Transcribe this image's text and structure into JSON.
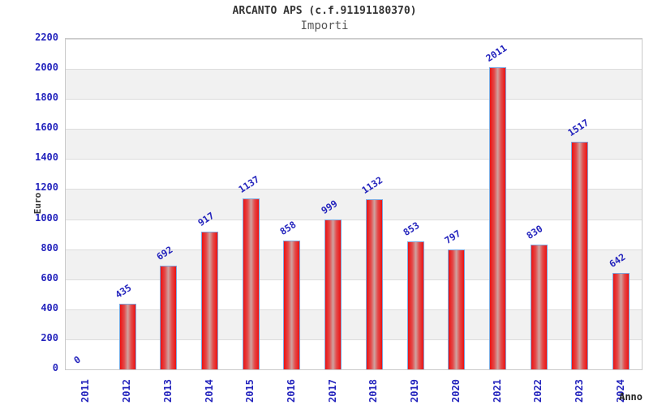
{
  "chart_data": {
    "type": "bar",
    "title": "ARCANTO APS (c.f.91191180370)",
    "subtitle": "Importi",
    "xlabel": "Anno",
    "ylabel": "Euro",
    "categories": [
      "2011",
      "2012",
      "2013",
      "2014",
      "2015",
      "2016",
      "2017",
      "2018",
      "2019",
      "2020",
      "2021",
      "2022",
      "2023",
      "2024"
    ],
    "values": [
      0,
      435,
      692,
      917,
      1137,
      858,
      999,
      1132,
      853,
      797,
      2011,
      830,
      1517,
      642
    ],
    "ylim": [
      0,
      2200
    ],
    "ytick_step": 200,
    "yticks": [
      0,
      200,
      400,
      600,
      800,
      1000,
      1200,
      1400,
      1600,
      1800,
      2000,
      2200
    ],
    "grid": true,
    "legend": "none",
    "colors": {
      "bar_fill": "#ec1212",
      "bar_highlight": "#cfa3a0",
      "bar_border": "#7da7dd",
      "axis_text": "#2424bd",
      "value_label": "#2424bd",
      "title_text": "#333333",
      "subtitle_text": "#555555",
      "band_fill": "#f1f1f1",
      "gridline": "#dcdcdc"
    }
  }
}
